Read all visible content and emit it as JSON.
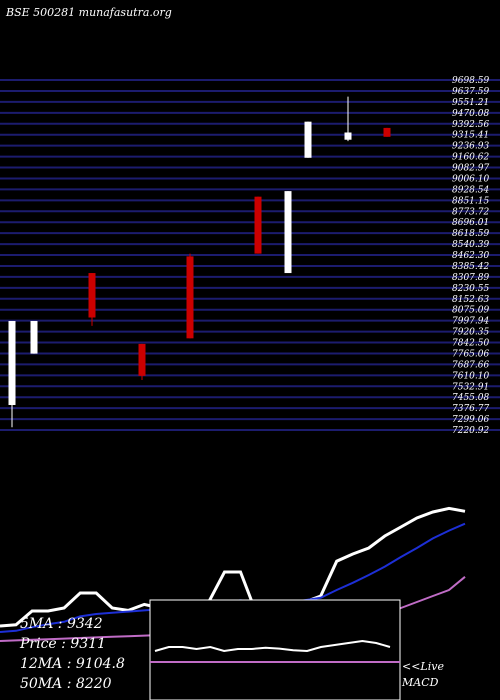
{
  "header": {
    "title": "BSE 500281 munafasutra.org"
  },
  "colors": {
    "background": "#000000",
    "grid_line": "#1c1c6e",
    "bull_candle": "#ffffff",
    "bear_candle": "#cc0000",
    "price_line": "#ffffff",
    "ma12_line": "#1d2fd6",
    "ma50_line": "#c06cc6",
    "macd_line": "#c06cc6",
    "text": "#ffffff"
  },
  "chart_data": [
    {
      "type": "candlestick",
      "title": "BSE 500281 munafasutra.org",
      "y_labels": [
        "9698.59",
        "9637.59",
        "9551.21",
        "9470.08",
        "9392.56",
        "9315.41",
        "9236.93",
        "9160.62",
        "9082.97",
        "9006.10",
        "8928.54",
        "8851.15",
        "8773.72",
        "8696.01",
        "8618.59",
        "8540.39",
        "8462.30",
        "8385.42",
        "8307.89",
        "8230.55",
        "8152.63",
        "8075.09",
        "7997.94",
        "7920.35",
        "7842.50",
        "7765.06",
        "7687.66",
        "7610.10",
        "7532.91",
        "7455.08",
        "7376.77",
        "7299.06",
        "7220.92"
      ],
      "ylim": [
        7200,
        9720
      ],
      "candles": [
        {
          "open": 7380,
          "close": 7985,
          "high": 7985,
          "low": 7220,
          "dir": "up"
        },
        {
          "open": 7750,
          "close": 7985,
          "high": 7985,
          "low": 7750,
          "dir": "up"
        },
        {
          "open": 8330,
          "close": 8010,
          "high": 8330,
          "low": 7950,
          "dir": "down"
        },
        {
          "open": 7820,
          "close": 7590,
          "high": 7820,
          "low": 7560,
          "dir": "down"
        },
        {
          "open": 8450,
          "close": 7860,
          "high": 8470,
          "low": 7860,
          "dir": "down"
        },
        {
          "open": 8880,
          "close": 8470,
          "high": 8880,
          "low": 8470,
          "dir": "down"
        },
        {
          "open": 8330,
          "close": 8920,
          "high": 8920,
          "low": 8330,
          "dir": "up"
        },
        {
          "open": 9160,
          "close": 9420,
          "high": 9420,
          "low": 9160,
          "dir": "up"
        },
        {
          "open": 9290,
          "close": 9342,
          "high": 9600,
          "low": 9280,
          "dir": "up"
        },
        {
          "open": 9375,
          "close": 9311,
          "high": 9375,
          "low": 9311,
          "dir": "down"
        }
      ]
    },
    {
      "type": "line",
      "series": [
        {
          "name": "Price",
          "values": [
            7400,
            7420,
            7650,
            7650,
            7700,
            7950,
            7950,
            7700,
            7660,
            7760,
            7700,
            7730,
            7720,
            7790,
            8300,
            8300,
            7600,
            7640,
            7700,
            7800,
            7900,
            8480,
            8600,
            8700,
            8900,
            9050,
            9200,
            9300,
            9360,
            9311
          ]
        },
        {
          "name": "12MA",
          "values": [
            7300,
            7320,
            7380,
            7430,
            7470,
            7560,
            7600,
            7620,
            7640,
            7660,
            7680,
            7690,
            7700,
            7720,
            7790,
            7830,
            7800,
            7790,
            7790,
            7830,
            7870,
            8000,
            8120,
            8250,
            8390,
            8550,
            8700,
            8860,
            8990,
            9104.8
          ]
        },
        {
          "name": "50MA",
          "values": [
            7150,
            7160,
            7170,
            7180,
            7190,
            7200,
            7210,
            7220,
            7230,
            7240,
            7250,
            7260,
            7270,
            7280,
            7290,
            7300,
            7310,
            7320,
            7330,
            7350,
            7380,
            7420,
            7470,
            7530,
            7600,
            7700,
            7800,
            7900,
            8000,
            8220
          ]
        }
      ]
    },
    {
      "type": "line",
      "series": [
        {
          "name": "MACD",
          "values": [
            0.1,
            0.2,
            0.2,
            0.15,
            0.2,
            0.1,
            0.15,
            0.15,
            0.18,
            0.16,
            0.12,
            0.1,
            0.2,
            0.25,
            0.3,
            0.35,
            0.3,
            0.2
          ]
        }
      ]
    }
  ],
  "legend": {
    "sma5": "5MA : 9342",
    "price": "Price   : 9311",
    "sma12": "12MA : 9104.8",
    "sma50": "50MA : 8220"
  },
  "macd_label_1": "<<Live",
  "macd_label_2": "MACD"
}
